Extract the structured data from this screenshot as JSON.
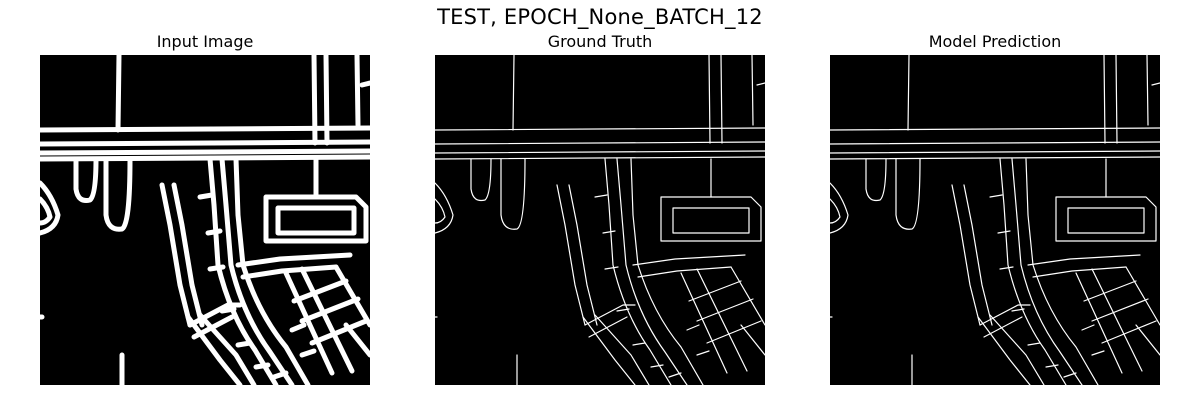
{
  "figure": {
    "suptitle": "TEST, EPOCH_None_BATCH_12",
    "colors": {
      "background": "#000000",
      "foreground": "#ffffff"
    },
    "panels": [
      {
        "title": "Input Image",
        "style": "thick"
      },
      {
        "title": "Ground Truth",
        "style": "thin"
      },
      {
        "title": "Model Prediction",
        "style": "thin-noisy"
      }
    ]
  }
}
